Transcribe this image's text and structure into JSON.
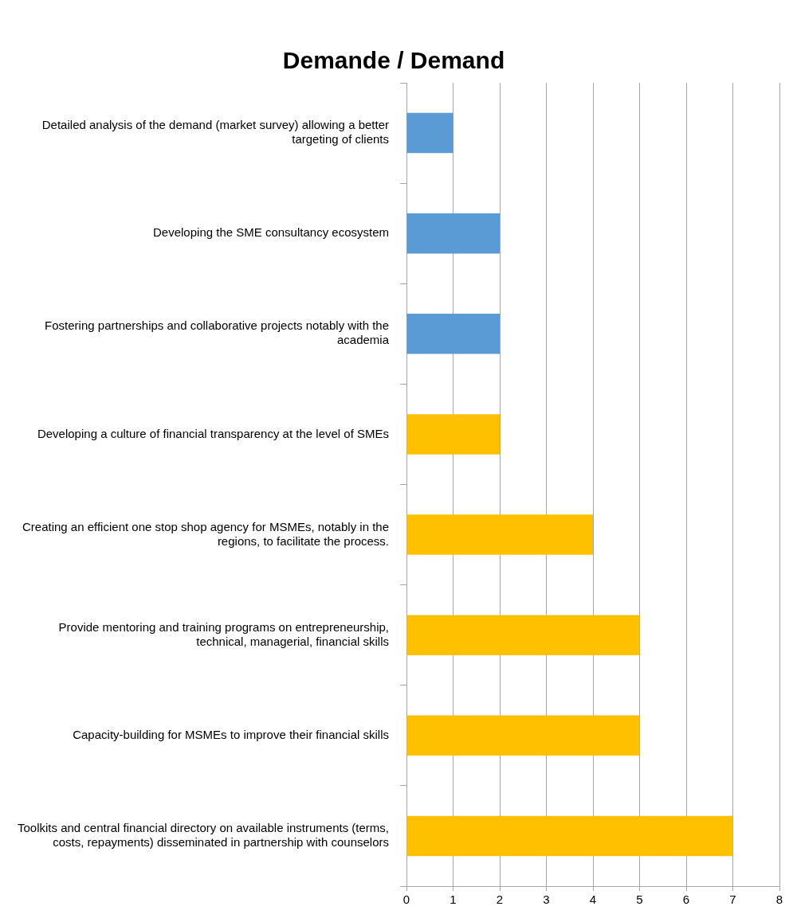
{
  "chart_data": {
    "type": "bar",
    "orientation": "horizontal",
    "title": "Demande / Demand",
    "categories": [
      "Detailed analysis of the demand (market survey) allowing a better targeting of clients",
      "Developing the SME consultancy ecosystem",
      "Fostering partnerships and collaborative projects notably with the academia",
      "Developing a culture of financial transparency at the level of SMEs",
      "Creating an efficient one stop shop agency for MSMEs, notably in the regions, to facilitate the process.",
      "Provide mentoring and training programs on entrepreneurship, technical, managerial, financial skills",
      "Capacity-building for MSMEs to improve their financial skills",
      "Toolkits and central financial directory on available instruments (terms, costs, repayments) disseminated in partnership with counselors"
    ],
    "values": [
      1,
      2,
      2,
      2,
      4,
      5,
      5,
      7
    ],
    "colors": [
      "#5b9bd5",
      "#5b9bd5",
      "#5b9bd5",
      "#ffc000",
      "#ffc000",
      "#ffc000",
      "#ffc000",
      "#ffc000"
    ],
    "xlim": [
      0,
      8
    ],
    "xticks": [
      0,
      1,
      2,
      3,
      4,
      5,
      6,
      7,
      8
    ],
    "grid": "x",
    "legend": false
  }
}
